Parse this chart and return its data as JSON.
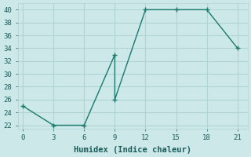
{
  "x": [
    0,
    3,
    6,
    9,
    9,
    12,
    15,
    18,
    21
  ],
  "y": [
    25,
    22,
    22,
    33,
    26,
    40,
    40,
    40,
    34
  ],
  "line_color": "#1a7a6e",
  "marker": "+",
  "marker_size": 4,
  "marker_linewidth": 1.0,
  "linewidth": 1.0,
  "background_color": "#cce8e8",
  "grid_color": "#b0d4d4",
  "xlabel": "Humidex (Indice chaleur)",
  "xlim": [
    -0.5,
    22
  ],
  "ylim": [
    21.5,
    41
  ],
  "xticks": [
    0,
    3,
    6,
    9,
    12,
    15,
    18,
    21
  ],
  "yticks": [
    22,
    24,
    26,
    28,
    30,
    32,
    34,
    36,
    38,
    40
  ],
  "tick_fontsize": 6.5,
  "xlabel_fontsize": 7.5,
  "label_color": "#1a5c5c"
}
